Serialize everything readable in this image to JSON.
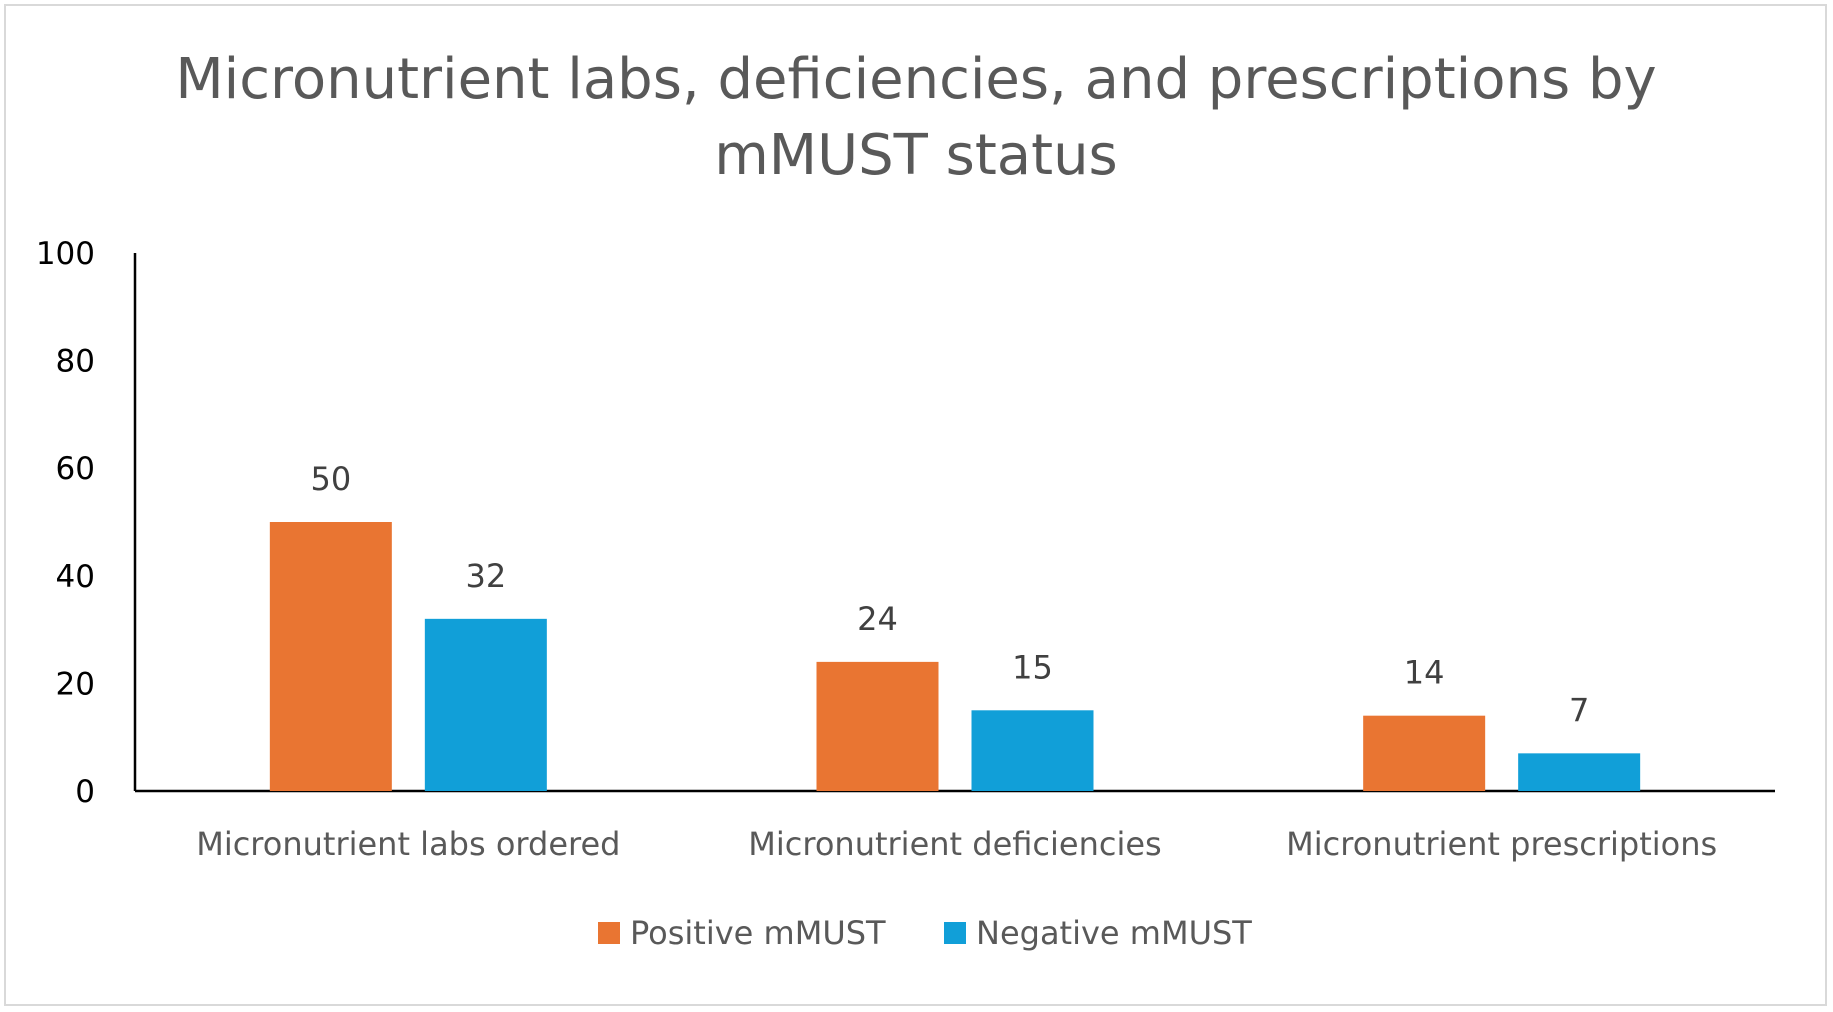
{
  "chart_data": {
    "type": "bar",
    "title": "Micronutrient labs, deficiencies, and prescriptions by mMUST status",
    "title_lines": [
      "Micronutrient labs, deficiencies, and prescriptions by",
      "mMUST status"
    ],
    "categories": [
      "Micronutrient labs ordered",
      "Micronutrient deficiencies",
      "Micronutrient prescriptions"
    ],
    "series": [
      {
        "name": "Positive mMUST",
        "values": [
          50,
          24,
          14
        ],
        "color": "#e97532"
      },
      {
        "name": "Negative mMUST",
        "values": [
          32,
          15,
          7
        ],
        "color": "#119fd8"
      }
    ],
    "ylim": [
      0,
      100
    ],
    "yticks": [
      0,
      20,
      40,
      60,
      80,
      100
    ],
    "xlabel": "",
    "ylabel": "",
    "grid": false,
    "legend_position": "bottom"
  }
}
